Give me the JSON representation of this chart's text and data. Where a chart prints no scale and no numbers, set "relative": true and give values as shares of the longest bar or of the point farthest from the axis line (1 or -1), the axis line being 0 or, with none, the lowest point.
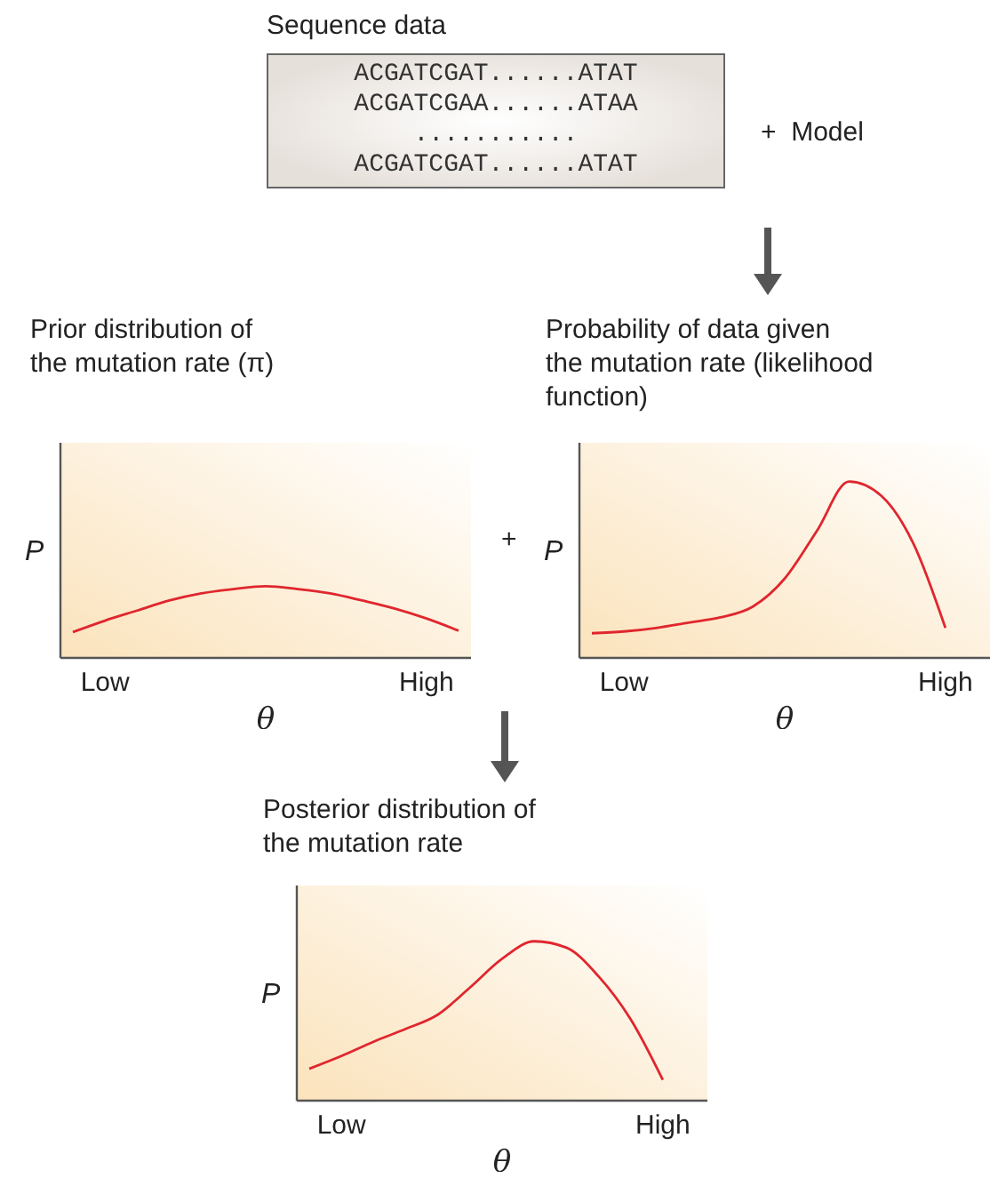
{
  "chart_data": [
    {
      "type": "other",
      "title": "Sequence data",
      "annotations": [
        "ACGATCGAT......ATAT",
        "ACGATCGAA......ATAA",
        "...........",
        "ACGATCGAT......ATAT",
        "+  Model"
      ]
    },
    {
      "type": "line",
      "title": "Prior distribution of\nthe mutation rate (π)",
      "xlabel": "θ",
      "ylabel": "P",
      "relative": true,
      "categories": [
        null,
        "Low",
        null,
        null,
        null,
        null,
        null,
        null,
        null,
        null,
        null,
        "High",
        null
      ],
      "tick_labels": "x",
      "grid": false,
      "legend": false,
      "marker": "none",
      "line_style": "solid",
      "series": [
        {
          "color": "#e0262e",
          "values": [
            0.36,
            0.52,
            0.66,
            0.8,
            0.9,
            0.96,
            1,
            0.96,
            0.9,
            0.8,
            0.69,
            0.55,
            0.38
          ]
        }
      ]
    },
    {
      "type": "line",
      "title": "Probability of data given\nthe mutation rate (likelihood\nfunction)",
      "xlabel": "θ",
      "ylabel": "P",
      "relative": true,
      "annotations": [
        "+"
      ],
      "categories": [
        null,
        "Low",
        null,
        null,
        null,
        null,
        null,
        null,
        null,
        null,
        null,
        "High",
        null
      ],
      "tick_labels": "x",
      "grid": false,
      "legend": false,
      "marker": "none",
      "line_style": "solid",
      "series": [
        {
          "color": "#e0262e",
          "values": [
            0.14,
            0.15,
            0.17,
            0.2,
            0.23,
            0.29,
            0.45,
            0.72,
            1,
            0.92,
            0.65,
            0.17,
            null
          ]
        }
      ]
    },
    {
      "type": "line",
      "title": "Posterior distribution of\nthe mutation rate",
      "xlabel": "θ",
      "ylabel": "P",
      "relative": true,
      "categories": [
        null,
        "Low",
        null,
        null,
        null,
        null,
        null,
        null,
        null,
        null,
        null,
        "High",
        null
      ],
      "tick_labels": "x",
      "grid": false,
      "legend": false,
      "marker": "none",
      "line_style": "solid",
      "series": [
        {
          "color": "#e0262e",
          "values": [
            0.2,
            0.28,
            0.37,
            0.45,
            0.54,
            0.71,
            0.89,
            1,
            0.96,
            0.78,
            0.51,
            0.13,
            null
          ]
        }
      ]
    }
  ]
}
